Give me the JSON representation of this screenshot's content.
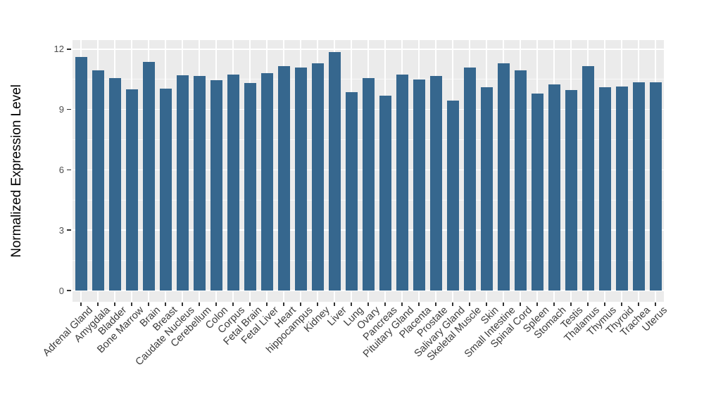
{
  "chart_data": {
    "type": "bar",
    "title": "",
    "xlabel": "",
    "ylabel": "Normalized Expression Level",
    "bar_color": "#36678E",
    "panel_background": "#EBEBEB",
    "gridline_color": "#FFFFFF",
    "grid": "on",
    "legend": "none",
    "ylim": [
      -0.6,
      12.45
    ],
    "yticks": [
      0,
      3,
      6,
      9,
      12
    ],
    "ytick_labels": [
      "0",
      "3",
      "6",
      "9",
      "12"
    ],
    "yminor": [
      1.5,
      4.5,
      7.5,
      10.5
    ],
    "categories": [
      "Adrenal Gland",
      "Amygdala",
      "Bladder",
      "Bone Marrow",
      "Brain",
      "Breast",
      "Caudate Nucleus",
      "Cerebellum",
      "Colon",
      "Corpus",
      "Fetal Brain",
      "Fetal Liver",
      "Heart",
      "hippocampus",
      "Kidney",
      "Liver",
      "Lung",
      "Ovary",
      "Pancreas",
      "Pituitary Gland",
      "Placenta",
      "Prostate",
      "Salivary Gland",
      "Skeletal Muscle",
      "Skin",
      "Small Intestine",
      "Spinal Cord",
      "Spleen",
      "Stomach",
      "Testis",
      "Thalamus",
      "Thymus",
      "Thyroid",
      "Trachea",
      "Uterus"
    ],
    "values": [
      11.6,
      10.95,
      10.55,
      10.0,
      11.35,
      10.05,
      10.7,
      10.65,
      10.45,
      10.75,
      10.3,
      10.8,
      11.15,
      11.1,
      11.3,
      11.85,
      9.85,
      10.55,
      9.7,
      10.75,
      10.5,
      10.65,
      9.45,
      11.1,
      10.1,
      11.3,
      10.95,
      9.8,
      10.25,
      9.95,
      11.15,
      10.1,
      10.15,
      10.35,
      10.35
    ]
  }
}
